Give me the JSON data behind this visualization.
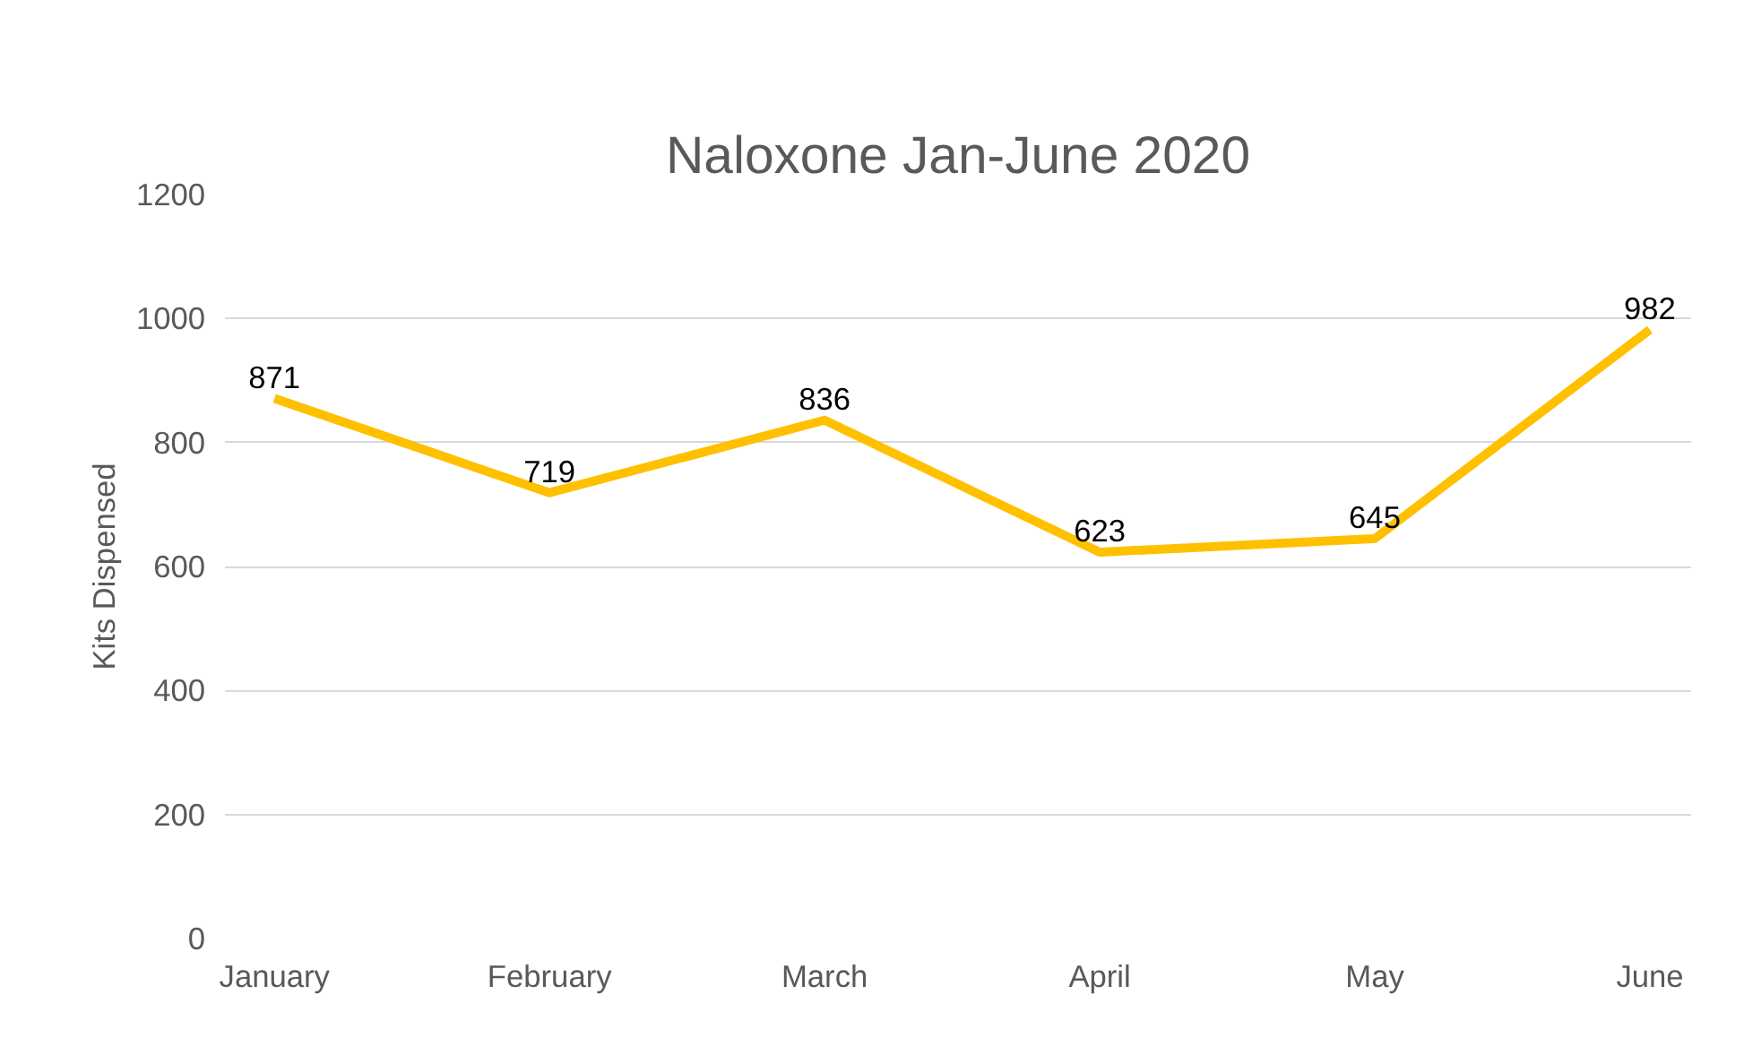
{
  "chart_data": {
    "type": "line",
    "title": "Naloxone Jan-June 2020",
    "ylabel": "Kits Dispensed",
    "categories": [
      "January",
      "February",
      "March",
      "April",
      "May",
      "June"
    ],
    "series": [
      {
        "color": "#ffc000",
        "values": [
          871,
          719,
          836,
          623,
          645,
          982
        ]
      }
    ],
    "ylim": [
      0,
      1200
    ],
    "yticks": [
      0,
      200,
      400,
      600,
      800,
      1000,
      1200
    ],
    "grid": "y",
    "data_labels": true,
    "marker": "none"
  }
}
